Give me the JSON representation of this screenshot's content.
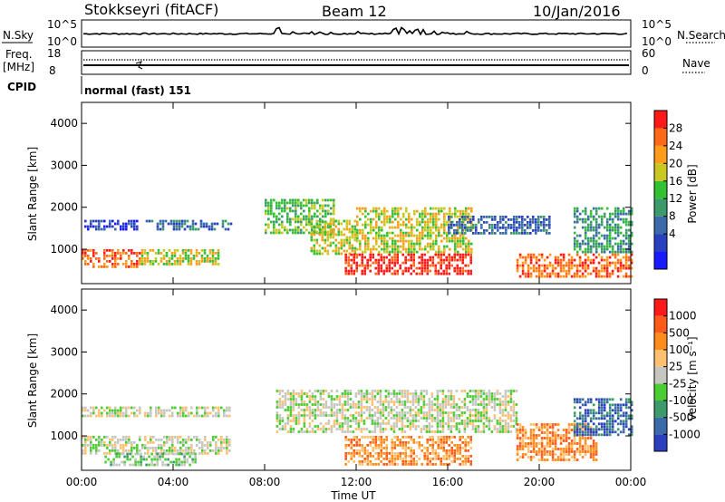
{
  "header": {
    "title": "Stokkseyri (fitACF)",
    "beam": "Beam 12",
    "date": "10/Jan/2016"
  },
  "strip_panels": {
    "nsky_label": "N.Sky",
    "nsky_ticks": [
      "10^5",
      "10^0"
    ],
    "nsearch_label": "N.Search",
    "freq_label_1": "Freq.",
    "freq_label_2": "[MHz]",
    "freq_ticks": [
      "18",
      "8"
    ],
    "nave_ticks": [
      "60",
      "0"
    ],
    "nave_label": "Nave",
    "cpid_label": "CPID",
    "cpid_value": "normal (fast) 151"
  },
  "colors": {
    "power": [
      "#1a1aff",
      "#2a3fbf",
      "#3a6aa8",
      "#3d9a6a",
      "#33c033",
      "#c8c820",
      "#ff9d1a",
      "#ff6a1a",
      "#ff1a1a"
    ],
    "velocity": [
      "#2b3fbf",
      "#3a6aa8",
      "#3d9a6a",
      "#4ccc33",
      "#c6c6c0",
      "#ffc070",
      "#ff8c1a",
      "#ff5a1a",
      "#ff1a1a"
    ]
  },
  "chart_data": [
    {
      "type": "heatmap",
      "name": "power",
      "ylabel": "Slant Range [km]",
      "ylim": [
        180,
        4500
      ],
      "yticks": [
        "1000",
        "2000",
        "3000",
        "4000"
      ],
      "xlim": [
        0,
        24
      ],
      "xticks": [
        "00:00",
        "04:00",
        "08:00",
        "12:00",
        "16:00",
        "20:00",
        "00:00"
      ],
      "colorbar_title": "Power [dB]",
      "colorbar_ticks": [
        "28",
        "24",
        "20",
        "16",
        "12",
        "8",
        "4"
      ],
      "regions": [
        {
          "t0": 0.0,
          "t1": 2.5,
          "r0": 600,
          "r1": 1000,
          "level": 7
        },
        {
          "t0": 0.0,
          "t1": 2.6,
          "r0": 1500,
          "r1": 1700,
          "level": 1
        },
        {
          "t0": 2.6,
          "t1": 6.0,
          "r0": 650,
          "r1": 1000,
          "level": 5
        },
        {
          "t0": 2.8,
          "t1": 6.5,
          "r0": 1500,
          "r1": 1700,
          "level": 2
        },
        {
          "t0": 8.0,
          "t1": 11.0,
          "r0": 1400,
          "r1": 2200,
          "level": 4
        },
        {
          "t0": 10.0,
          "t1": 12.0,
          "r0": 900,
          "r1": 1700,
          "level": 5
        },
        {
          "t0": 11.5,
          "t1": 17.0,
          "r0": 400,
          "r1": 900,
          "level": 8
        },
        {
          "t0": 12.0,
          "t1": 17.0,
          "r0": 900,
          "r1": 2000,
          "level": 5
        },
        {
          "t0": 16.0,
          "t1": 20.5,
          "r0": 1400,
          "r1": 1800,
          "level": 2
        },
        {
          "t0": 19.0,
          "t1": 24.0,
          "r0": 350,
          "r1": 900,
          "level": 7
        },
        {
          "t0": 21.5,
          "t1": 24.0,
          "r0": 900,
          "r1": 2000,
          "level": 3
        }
      ]
    },
    {
      "type": "heatmap",
      "name": "velocity",
      "ylabel": "Slant Range [km]",
      "xlabel": "Time UT",
      "ylim": [
        180,
        4500
      ],
      "yticks": [
        "1000",
        "2000",
        "3000",
        "4000"
      ],
      "xlim": [
        0,
        24
      ],
      "xticks": [
        "00:00",
        "04:00",
        "08:00",
        "12:00",
        "16:00",
        "20:00",
        "00:00"
      ],
      "colorbar_title": "Velocity [m s⁻¹]",
      "colorbar_ticks": [
        "1000",
        "500",
        "100",
        "25",
        "-25",
        "-100",
        "-500",
        "-1000"
      ],
      "regions": [
        {
          "t0": 0.0,
          "t1": 6.5,
          "r0": 600,
          "r1": 1000,
          "level": 4
        },
        {
          "t0": 1.0,
          "t1": 5.0,
          "r0": 300,
          "r1": 600,
          "level": 3
        },
        {
          "t0": 0.0,
          "t1": 6.5,
          "r0": 1500,
          "r1": 1700,
          "level": 4
        },
        {
          "t0": 8.5,
          "t1": 19.0,
          "r0": 1100,
          "r1": 2100,
          "level": 4
        },
        {
          "t0": 11.5,
          "t1": 17.0,
          "r0": 350,
          "r1": 1000,
          "level": 6
        },
        {
          "t0": 19.0,
          "t1": 22.5,
          "r0": 450,
          "r1": 1300,
          "level": 6
        },
        {
          "t0": 21.5,
          "t1": 24.0,
          "r0": 1000,
          "r1": 1900,
          "level": 1
        }
      ]
    }
  ]
}
